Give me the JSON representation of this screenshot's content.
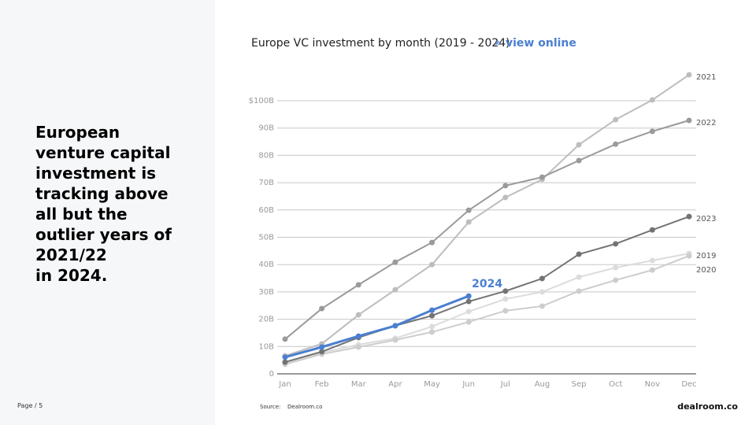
{
  "headline_lines": [
    "European",
    "venture capital",
    "investment is",
    "tracking above",
    "all but the",
    "outlier years of",
    "2021/22",
    "in 2024."
  ],
  "page_label": "Page / 5",
  "link_marker": "»",
  "link": "view online",
  "source_label": "Source:",
  "source": "Dealroom.co",
  "logo": "dealroom.co",
  "chart_data": {
    "type": "line",
    "title": "Europe VC investment by month (2019 - 2024)",
    "categories": [
      "Jan",
      "Feb",
      "Mar",
      "Apr",
      "May",
      "Jun",
      "Jul",
      "Aug",
      "Sep",
      "Oct",
      "Nov",
      "Dec"
    ],
    "ylim": [
      0,
      100
    ],
    "yticks": [
      0,
      {
        "value": 10,
        "label": "10B"
      },
      {
        "value": 20,
        "label": "20B"
      },
      {
        "value": 30,
        "label": "30B"
      },
      {
        "value": 40,
        "label": "40B"
      },
      {
        "value": 50,
        "label": "50B"
      },
      {
        "value": 60,
        "label": "60B"
      },
      {
        "value": 70,
        "label": "70B"
      },
      {
        "value": 80,
        "label": "80B"
      },
      {
        "value": 90,
        "label": "90B"
      },
      {
        "value": 100,
        "label": "$100B"
      }
    ],
    "grid": true,
    "series": [
      {
        "name": "2019",
        "color": "#dcdcdc",
        "values": [
          4,
          7.8,
          10.7,
          13,
          17.3,
          22.8,
          27.4,
          30,
          35.4,
          38.9,
          41.5,
          44.1
        ]
      },
      {
        "name": "2020",
        "color": "#cdcdcd",
        "values": [
          3.5,
          7.2,
          9.8,
          12.4,
          15.3,
          19,
          23.1,
          24.8,
          30.3,
          34.3,
          38,
          43.2
        ]
      },
      {
        "name": "2021",
        "color": "#bdbdbd",
        "values": [
          6.6,
          11,
          21.6,
          30.8,
          40,
          55.6,
          64.6,
          71.2,
          83.9,
          93.1,
          100.3,
          109.5
        ]
      },
      {
        "name": "2022",
        "color": "#9a9a9a",
        "values": [
          12.7,
          23.9,
          32.6,
          40.9,
          48.1,
          59.9,
          68.9,
          72,
          78.1,
          84.1,
          88.8,
          92.8
        ]
      },
      {
        "name": "2023",
        "color": "#737373",
        "values": [
          4.3,
          8.1,
          13.3,
          17.6,
          21.3,
          26.5,
          30.3,
          34.9,
          43.8,
          47.6,
          52.7,
          57.6
        ]
      },
      {
        "name": "2024",
        "color": "#4a7fd0",
        "values": [
          6.1,
          9.8,
          13.8,
          17.6,
          23.3,
          28.5,
          null,
          null,
          null,
          null,
          null,
          null
        ]
      }
    ]
  }
}
